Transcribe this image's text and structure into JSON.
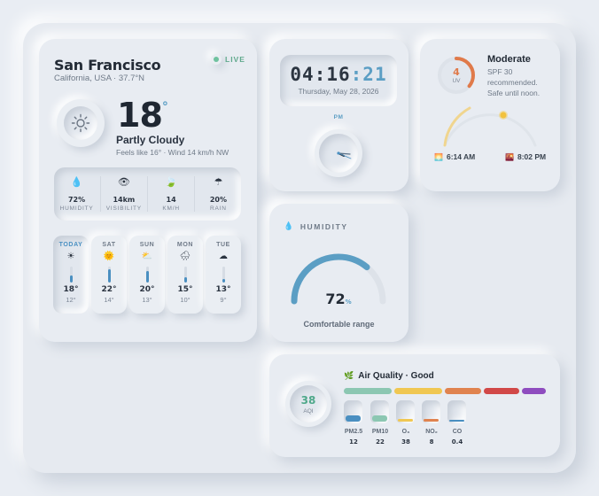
{
  "weather": {
    "city": "San Francisco",
    "location": "California, USA · 37.7°N",
    "live_label": "LIVE",
    "temperature": "18",
    "degree_symbol": "°",
    "condition": "Partly Cloudy",
    "feels_like": "Feels like 16° · Wind 14 km/h NW",
    "stats": [
      {
        "icon": "droplet-icon",
        "glyph": "💧",
        "value": "72%",
        "label": "HUMIDITY"
      },
      {
        "icon": "eye-icon",
        "glyph": "👁",
        "value": "14km",
        "label": "VISIBILITY"
      },
      {
        "icon": "wind-icon",
        "glyph": "🍃",
        "value": "14",
        "label": "KM/H"
      },
      {
        "icon": "umbrella-icon",
        "glyph": "☂",
        "value": "20%",
        "label": "RAIN"
      }
    ],
    "forecast": [
      {
        "day": "TODAY",
        "icon": "sun-icon",
        "glyph": "☀",
        "high": "18°",
        "low": "12°",
        "level": 0.45
      },
      {
        "day": "SAT",
        "icon": "sun-icon",
        "glyph": "🌞",
        "high": "22°",
        "low": "14°",
        "level": 0.85
      },
      {
        "day": "SUN",
        "icon": "partly-cloudy-icon",
        "glyph": "⛅",
        "high": "20°",
        "low": "13°",
        "level": 0.75
      },
      {
        "day": "MON",
        "icon": "rain-cloud-icon",
        "glyph": "🌧",
        "high": "15°",
        "low": "10°",
        "level": 0.35
      },
      {
        "day": "TUE",
        "icon": "cloud-icon",
        "glyph": "☁",
        "high": "13°",
        "low": "9°",
        "level": 0.2
      }
    ]
  },
  "clock": {
    "hours": "04",
    "minutes": "16",
    "seconds": "21",
    "colon": ":",
    "date": "Thursday, May 28, 2026",
    "period": "PM"
  },
  "uv": {
    "index": "4",
    "unit": "UV",
    "level": 0.36,
    "title": "Moderate",
    "description_lines": [
      "SPF 30",
      "recommended.",
      "Safe until noon."
    ],
    "sunrise": "6:14 AM",
    "sunset": "8:02 PM",
    "accent_color": "#e07a4a"
  },
  "humidity": {
    "title": "HUMIDITY",
    "value": "72",
    "unit": "%",
    "fraction": 0.72,
    "note": "Comfortable range",
    "accent_color": "#5b9ec4"
  },
  "air_quality": {
    "aqi": "38",
    "aqi_label": "AQI",
    "title": "Air Quality · Good",
    "scale_colors": [
      "#8cc7b2",
      "#f0c752",
      "#e0834f",
      "#d14848",
      "#8e4cbf"
    ],
    "pollutants": [
      {
        "name": "PM2.5",
        "value": "12",
        "fill": 0.3,
        "color": "#4a8fc1"
      },
      {
        "name": "PM10",
        "value": "22",
        "fill": 0.3,
        "color": "#8cc7b2"
      },
      {
        "name": "O₃",
        "value": "38",
        "fill": 0.15,
        "color": "#f0c752"
      },
      {
        "name": "NO₂",
        "value": "8",
        "fill": 0.12,
        "color": "#e0834f"
      },
      {
        "name": "CO",
        "value": "0.4",
        "fill": 0.08,
        "color": "#4a8fc1"
      }
    ]
  }
}
